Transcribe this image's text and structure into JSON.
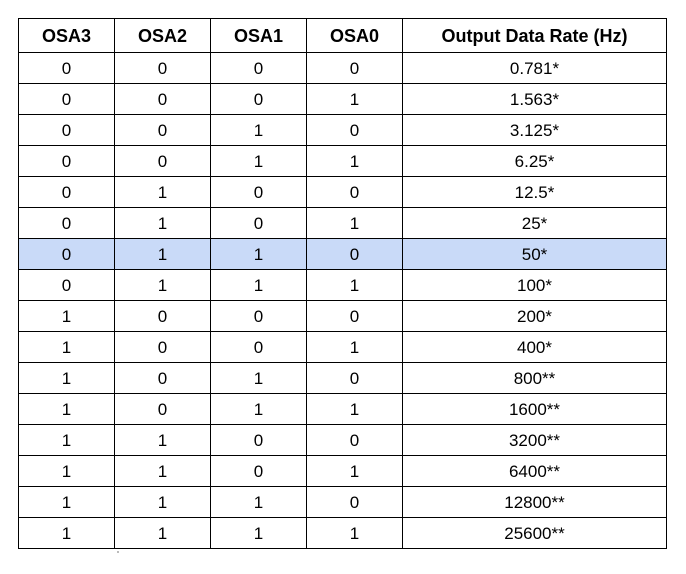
{
  "table": {
    "headers": [
      "OSA3",
      "OSA2",
      "OSA1",
      "OSA0",
      "Output Data Rate (Hz)"
    ],
    "highlight_color": "#c9daf8",
    "rows": [
      {
        "cells": [
          "0",
          "0",
          "0",
          "0",
          "0.781*"
        ],
        "highlighted": false
      },
      {
        "cells": [
          "0",
          "0",
          "0",
          "1",
          "1.563*"
        ],
        "highlighted": false
      },
      {
        "cells": [
          "0",
          "0",
          "1",
          "0",
          "3.125*"
        ],
        "highlighted": false
      },
      {
        "cells": [
          "0",
          "0",
          "1",
          "1",
          "6.25*"
        ],
        "highlighted": false
      },
      {
        "cells": [
          "0",
          "1",
          "0",
          "0",
          "12.5*"
        ],
        "highlighted": false
      },
      {
        "cells": [
          "0",
          "1",
          "0",
          "1",
          "25*"
        ],
        "highlighted": false
      },
      {
        "cells": [
          "0",
          "1",
          "1",
          "0",
          "50*"
        ],
        "highlighted": true
      },
      {
        "cells": [
          "0",
          "1",
          "1",
          "1",
          "100*"
        ],
        "highlighted": false
      },
      {
        "cells": [
          "1",
          "0",
          "0",
          "0",
          "200*"
        ],
        "highlighted": false
      },
      {
        "cells": [
          "1",
          "0",
          "0",
          "1",
          "400*"
        ],
        "highlighted": false
      },
      {
        "cells": [
          "1",
          "0",
          "1",
          "0",
          "800**"
        ],
        "highlighted": false
      },
      {
        "cells": [
          "1",
          "0",
          "1",
          "1",
          "1600**"
        ],
        "highlighted": false
      },
      {
        "cells": [
          "1",
          "1",
          "0",
          "0",
          "3200**"
        ],
        "highlighted": false
      },
      {
        "cells": [
          "1",
          "1",
          "0",
          "1",
          "6400**"
        ],
        "highlighted": false
      },
      {
        "cells": [
          "1",
          "1",
          "1",
          "0",
          "12800**"
        ],
        "highlighted": false
      },
      {
        "cells": [
          "1",
          "1",
          "1",
          "1",
          "25600**"
        ],
        "highlighted": false
      }
    ]
  }
}
